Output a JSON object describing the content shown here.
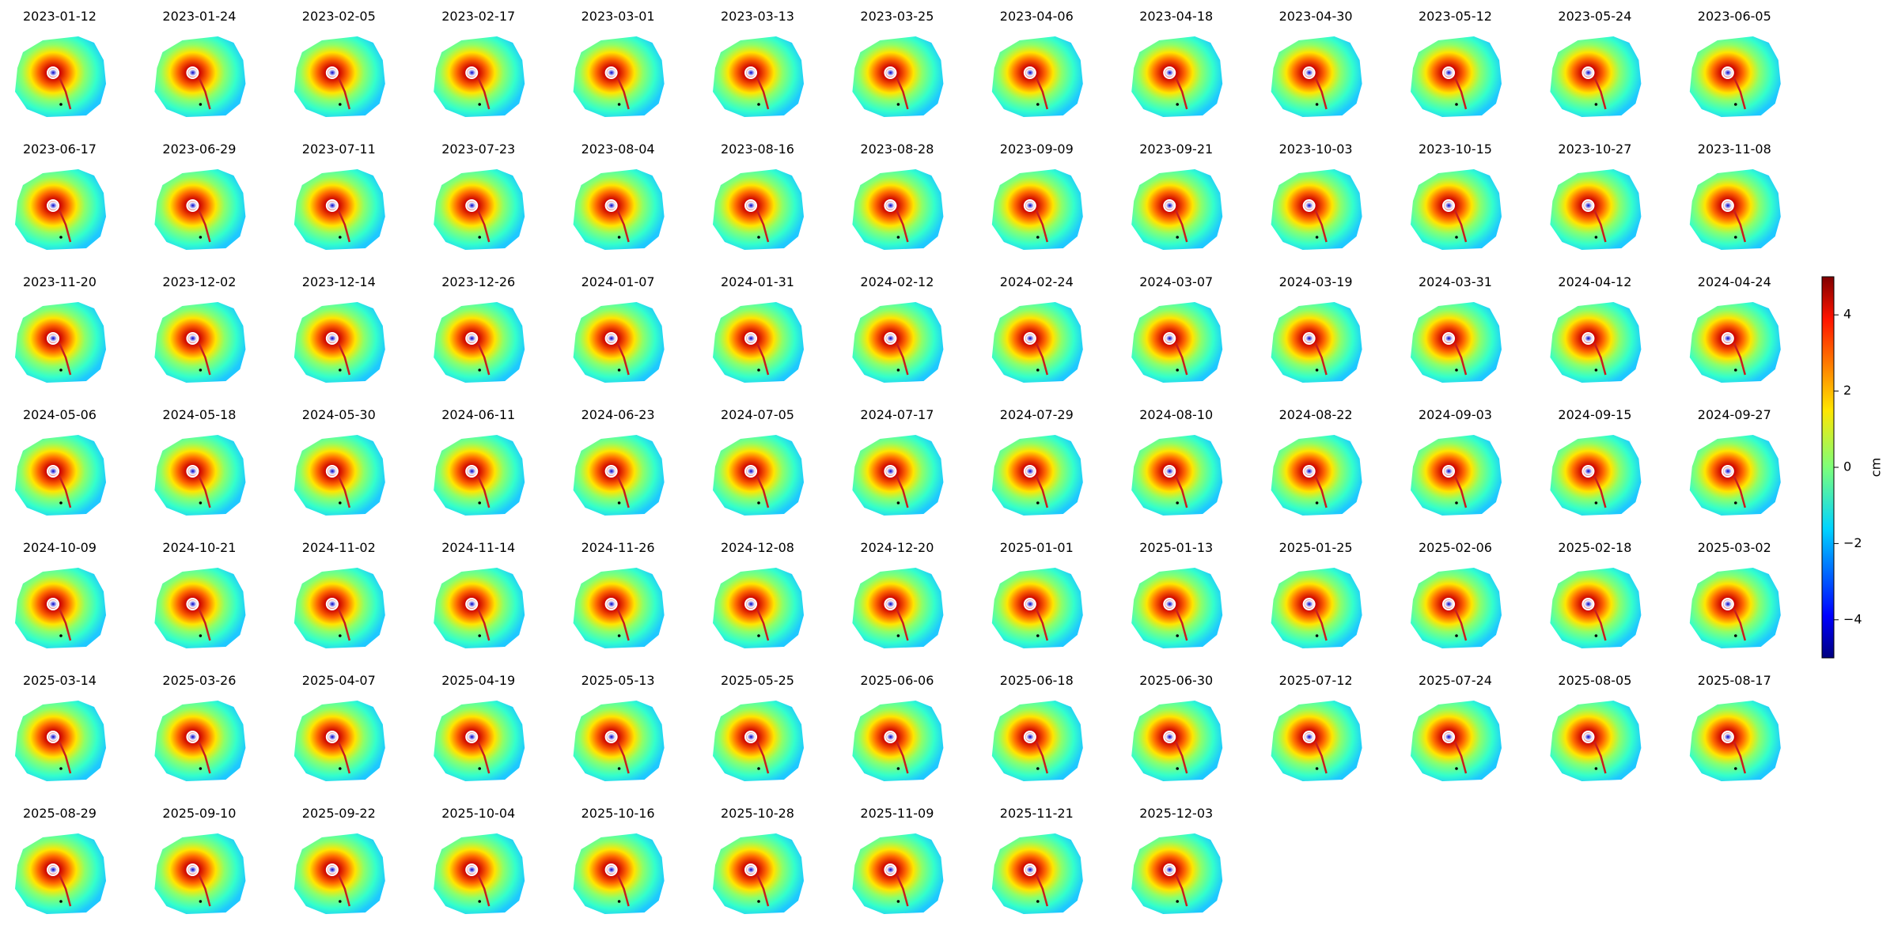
{
  "chart_data": {
    "type": "raster-grid",
    "panels": [
      "2023-01-12",
      "2023-01-24",
      "2023-02-05",
      "2023-02-17",
      "2023-03-01",
      "2023-03-13",
      "2023-03-25",
      "2023-04-06",
      "2023-04-18",
      "2023-04-30",
      "2023-05-12",
      "2023-05-24",
      "2023-06-05",
      "2023-06-17",
      "2023-06-29",
      "2023-07-11",
      "2023-07-23",
      "2023-08-04",
      "2023-08-16",
      "2023-08-28",
      "2023-09-09",
      "2023-09-21",
      "2023-10-03",
      "2023-10-15",
      "2023-10-27",
      "2023-11-08",
      "2023-11-20",
      "2023-12-02",
      "2023-12-14",
      "2023-12-26",
      "2024-01-07",
      "2024-01-31",
      "2024-02-12",
      "2024-02-24",
      "2024-03-07",
      "2024-03-19",
      "2024-03-31",
      "2024-04-12",
      "2024-04-24",
      "2024-05-06",
      "2024-05-18",
      "2024-05-30",
      "2024-06-11",
      "2024-06-23",
      "2024-07-05",
      "2024-07-17",
      "2024-07-29",
      "2024-08-10",
      "2024-08-22",
      "2024-09-03",
      "2024-09-15",
      "2024-09-27",
      "2024-10-09",
      "2024-10-21",
      "2024-11-02",
      "2024-11-14",
      "2024-11-26",
      "2024-12-08",
      "2024-12-20",
      "2025-01-01",
      "2025-01-13",
      "2025-01-25",
      "2025-02-06",
      "2025-02-18",
      "2025-03-02",
      "2025-03-14",
      "2025-03-26",
      "2025-04-07",
      "2025-04-19",
      "2025-05-13",
      "2025-05-25",
      "2025-06-06",
      "2025-06-18",
      "2025-06-30",
      "2025-07-12",
      "2025-07-24",
      "2025-08-05",
      "2025-08-17",
      "2025-08-29",
      "2025-09-10",
      "2025-09-22",
      "2025-10-04",
      "2025-10-16",
      "2025-10-28",
      "2025-11-09",
      "2025-11-21",
      "2025-12-03"
    ],
    "colorbar": {
      "label": "cm",
      "lim": [
        -5,
        5
      ],
      "ticks": [
        {
          "value": -4,
          "label": "−4"
        },
        {
          "value": -2,
          "label": "−2"
        },
        0,
        2,
        4
      ]
    }
  }
}
